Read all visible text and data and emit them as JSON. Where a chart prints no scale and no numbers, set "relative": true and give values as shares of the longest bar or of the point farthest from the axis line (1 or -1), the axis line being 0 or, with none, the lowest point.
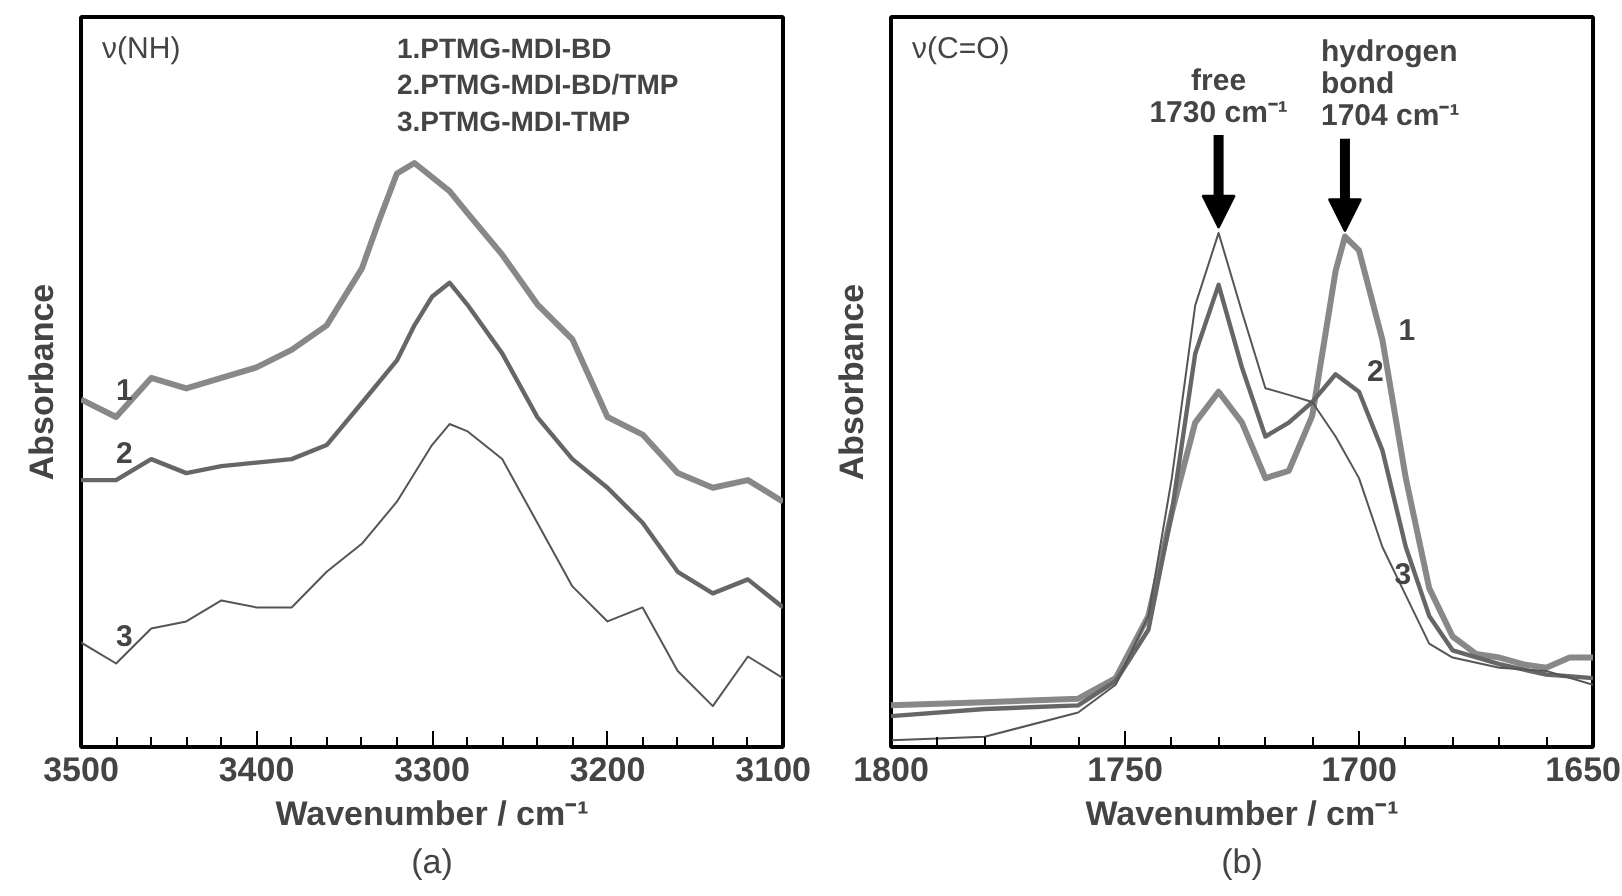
{
  "chart_data": [
    {
      "type": "line",
      "title": "(a)",
      "xlabel": "Wavenumber / cm⁻¹",
      "ylabel": "Absorbance",
      "relative": true,
      "xlim": [
        3500,
        3100
      ],
      "xticks": [
        3500,
        {
          "value": 3480,
          "label": null
        },
        {
          "value": 3460,
          "label": null
        },
        {
          "value": 3440,
          "label": null
        },
        {
          "value": 3420,
          "label": null
        },
        3400,
        {
          "value": 3380,
          "label": null
        },
        {
          "value": 3360,
          "label": null
        },
        {
          "value": 3340,
          "label": null
        },
        {
          "value": 3320,
          "label": null
        },
        3300,
        {
          "value": 3280,
          "label": null
        },
        {
          "value": 3260,
          "label": null
        },
        {
          "value": 3240,
          "label": null
        },
        {
          "value": 3220,
          "label": null
        },
        3200,
        {
          "value": 3180,
          "label": null
        },
        {
          "value": 3160,
          "label": null
        },
        {
          "value": 3140,
          "label": null
        },
        {
          "value": 3120,
          "label": null
        },
        3100
      ],
      "annotations": [
        "ν(NH)",
        "1.PTMG-MDI-BD",
        "2.PTMG-MDI-BD/TMP",
        "3.PTMG-MDI-TMP"
      ],
      "series": [
        {
          "name": "1",
          "color": "#888888",
          "x": [
            3500,
            3480,
            3460,
            3440,
            3420,
            3400,
            3380,
            3360,
            3340,
            3330,
            3320,
            3310,
            3290,
            3280,
            3260,
            3240,
            3220,
            3200,
            3180,
            3160,
            3140,
            3120,
            3100
          ],
          "values": [
            0.595,
            0.565,
            0.632,
            0.614,
            0.632,
            0.65,
            0.68,
            0.722,
            0.819,
            0.903,
            0.982,
            1.0,
            0.952,
            0.915,
            0.843,
            0.758,
            0.698,
            0.565,
            0.535,
            0.469,
            0.444,
            0.457,
            0.42
          ]
        },
        {
          "name": "2",
          "color": "#666666",
          "x": [
            3500,
            3480,
            3460,
            3440,
            3420,
            3400,
            3380,
            3360,
            3340,
            3320,
            3310,
            3300,
            3290,
            3280,
            3260,
            3240,
            3220,
            3200,
            3180,
            3160,
            3140,
            3120,
            3100
          ],
          "values": [
            0.457,
            0.457,
            0.493,
            0.469,
            0.481,
            0.487,
            0.493,
            0.517,
            0.589,
            0.662,
            0.722,
            0.771,
            0.795,
            0.758,
            0.674,
            0.565,
            0.493,
            0.444,
            0.384,
            0.3,
            0.263,
            0.287,
            0.239
          ]
        },
        {
          "name": "3",
          "color": "#555555",
          "x": [
            3500,
            3480,
            3460,
            3440,
            3420,
            3400,
            3380,
            3360,
            3340,
            3320,
            3300,
            3290,
            3280,
            3260,
            3240,
            3220,
            3200,
            3180,
            3160,
            3140,
            3120,
            3100
          ],
          "values": [
            0.179,
            0.143,
            0.203,
            0.215,
            0.251,
            0.239,
            0.239,
            0.3,
            0.348,
            0.42,
            0.517,
            0.553,
            0.541,
            0.493,
            0.384,
            0.275,
            0.215,
            0.239,
            0.13,
            0.07,
            0.155,
            0.118
          ]
        }
      ]
    },
    {
      "type": "line",
      "title": "(b)",
      "xlabel": "Wavenumber / cm⁻¹",
      "ylabel": "Absorbance",
      "relative": true,
      "xlim": [
        1800,
        1650
      ],
      "xticks": [
        1800,
        {
          "value": 1790,
          "label": null
        },
        {
          "value": 1780,
          "label": null
        },
        {
          "value": 1770,
          "label": null
        },
        {
          "value": 1760,
          "label": null
        },
        1750,
        {
          "value": 1740,
          "label": null
        },
        {
          "value": 1730,
          "label": null
        },
        {
          "value": 1720,
          "label": null
        },
        {
          "value": 1710,
          "label": null
        },
        1700,
        {
          "value": 1690,
          "label": null
        },
        {
          "value": 1680,
          "label": null
        },
        {
          "value": 1670,
          "label": null
        },
        {
          "value": 1660,
          "label": null
        },
        1650
      ],
      "annotations": [
        "ν(C=O)",
        {
          "text": "free\n1730 cm⁻¹",
          "x": 1730,
          "y": 1.0
        },
        {
          "text": "hydrogen\nbond\n1704 cm⁻¹",
          "x": 1703,
          "y": 0.993
        }
      ],
      "series": [
        {
          "name": "1",
          "color": "#888888",
          "x": [
            1800,
            1780,
            1760,
            1752,
            1745,
            1740,
            1735,
            1730,
            1725,
            1720,
            1715,
            1710,
            1705,
            1703,
            1700,
            1695,
            1690,
            1685,
            1680,
            1675,
            1670,
            1665,
            1660,
            1655,
            1650
          ],
          "values": [
            0.081,
            0.087,
            0.094,
            0.134,
            0.255,
            0.456,
            0.631,
            0.691,
            0.631,
            0.523,
            0.537,
            0.644,
            0.926,
            0.993,
            0.966,
            0.792,
            0.523,
            0.309,
            0.215,
            0.181,
            0.174,
            0.161,
            0.154,
            0.174,
            0.174
          ]
        },
        {
          "name": "2",
          "color": "#666666",
          "x": [
            1800,
            1780,
            1760,
            1752,
            1745,
            1740,
            1735,
            1730,
            1725,
            1720,
            1715,
            1710,
            1705,
            1700,
            1695,
            1690,
            1685,
            1680,
            1670,
            1660,
            1650
          ],
          "values": [
            0.06,
            0.074,
            0.081,
            0.128,
            0.228,
            0.456,
            0.765,
            0.899,
            0.738,
            0.604,
            0.631,
            0.671,
            0.725,
            0.691,
            0.577,
            0.389,
            0.255,
            0.188,
            0.161,
            0.141,
            0.134
          ]
        },
        {
          "name": "3",
          "color": "#555555",
          "x": [
            1800,
            1780,
            1760,
            1752,
            1745,
            1740,
            1735,
            1730,
            1725,
            1720,
            1715,
            1710,
            1705,
            1700,
            1695,
            1690,
            1685,
            1680,
            1670,
            1660,
            1650
          ],
          "values": [
            0.013,
            0.02,
            0.067,
            0.121,
            0.255,
            0.523,
            0.859,
            1.0,
            0.846,
            0.698,
            0.685,
            0.671,
            0.604,
            0.523,
            0.389,
            0.295,
            0.201,
            0.174,
            0.154,
            0.148,
            0.121
          ]
        }
      ]
    }
  ]
}
